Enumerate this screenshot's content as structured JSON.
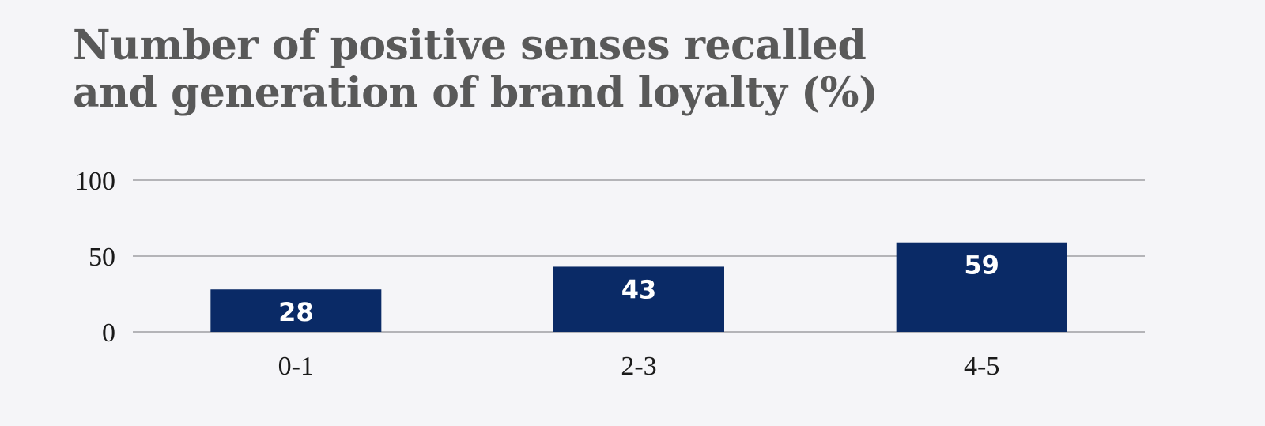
{
  "chart_data": {
    "type": "bar",
    "title_lines": [
      "Number of positive senses recalled",
      "and generation of brand loyalty (%)"
    ],
    "categories": [
      "0-1",
      "2-3",
      "4-5"
    ],
    "values": [
      28,
      43,
      59
    ],
    "data_labels": [
      "28",
      "43",
      "59"
    ],
    "yticks": [
      "0",
      "50",
      "100"
    ],
    "ylim": [
      0,
      100
    ],
    "grid": true,
    "legend": "none",
    "bar_color": "#0a2a66",
    "grid_color": "#b4b4b8"
  }
}
